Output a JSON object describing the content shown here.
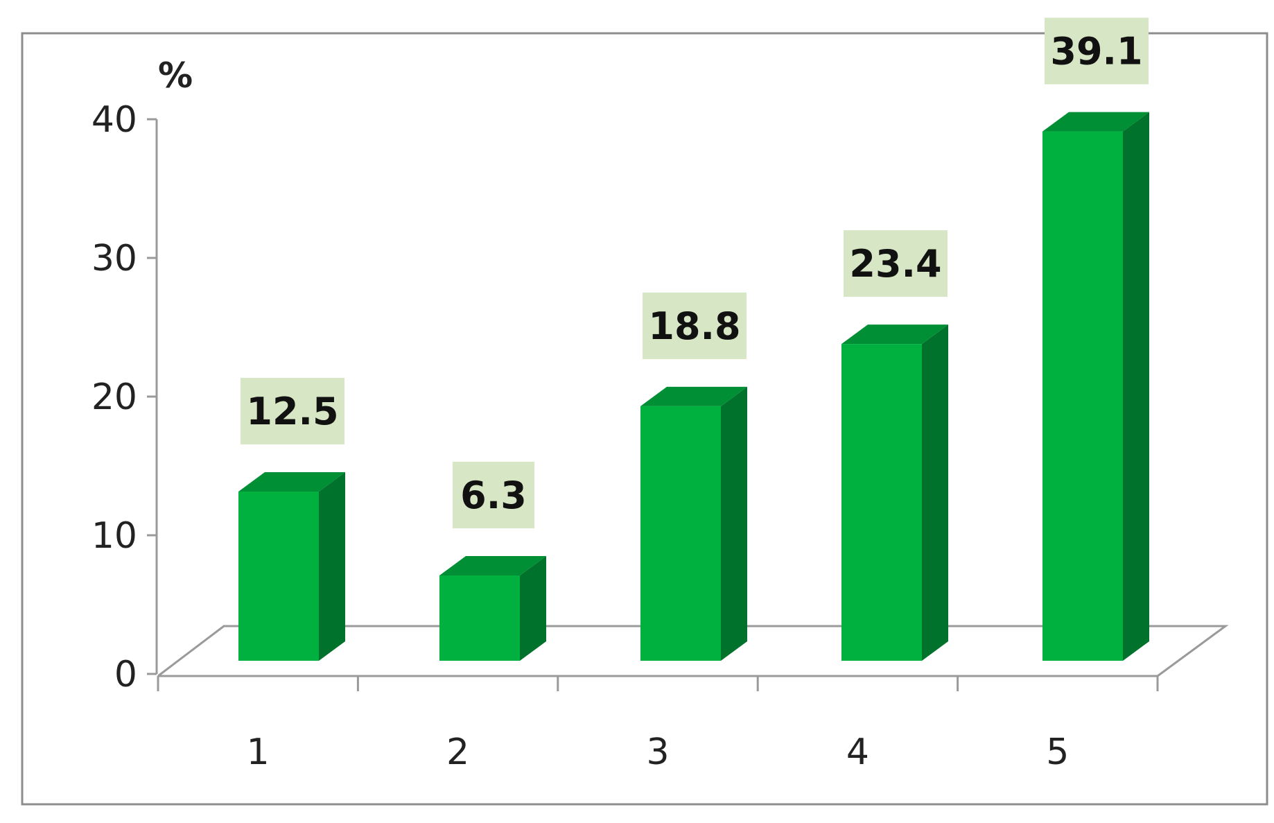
{
  "chart_data": {
    "type": "bar",
    "categories": [
      "1",
      "2",
      "3",
      "4",
      "5"
    ],
    "values": [
      12.5,
      6.3,
      18.8,
      23.4,
      39.1
    ],
    "data_labels": [
      "12.5",
      "6.3",
      "18.8",
      "23.4",
      "39.1"
    ],
    "y_unit_label": "%",
    "ylim": [
      0,
      40
    ],
    "y_ticks": [
      "0",
      "10",
      "20",
      "30",
      "40"
    ],
    "style": "3d-column",
    "grid": false,
    "legend": "none",
    "colors": {
      "bar_front": "#00b140",
      "bar_side": "#00722b",
      "bar_top": "#008f35",
      "label_bg": "#d7e6c4",
      "axis": "#9a9a9a",
      "frame": "#8c8c8c"
    }
  }
}
